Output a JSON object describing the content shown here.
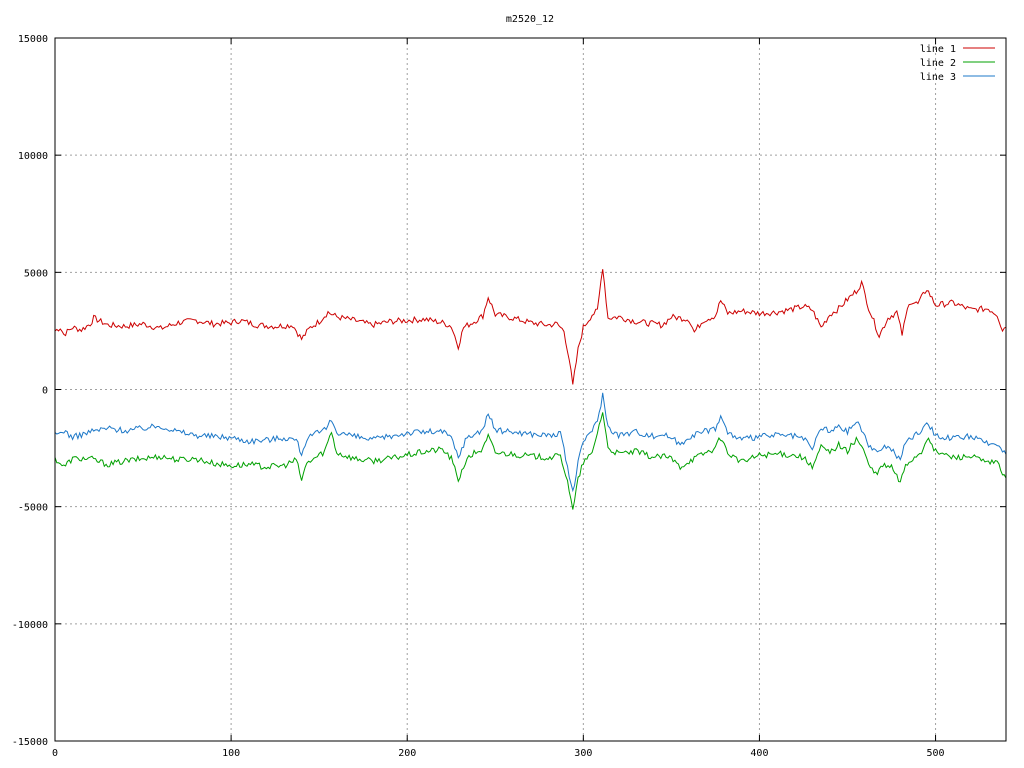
{
  "chart_data": {
    "type": "line",
    "title": "m2520_12",
    "xlabel": "",
    "ylabel": "",
    "xlim": [
      0,
      540
    ],
    "ylim": [
      -15000,
      15000
    ],
    "xticks": [
      0,
      100,
      200,
      300,
      400,
      500
    ],
    "yticks": [
      -15000,
      -10000,
      -5000,
      0,
      5000,
      10000,
      15000
    ],
    "grid": true,
    "legend_position": "top-right",
    "series": [
      {
        "name": "line 1",
        "color": "#cc0000",
        "keypoints": [
          [
            0,
            2500
          ],
          [
            3,
            2650
          ],
          [
            5,
            2350
          ],
          [
            10,
            2650
          ],
          [
            15,
            2550
          ],
          [
            20,
            2800
          ],
          [
            22,
            3050
          ],
          [
            30,
            2750
          ],
          [
            40,
            2700
          ],
          [
            50,
            2800
          ],
          [
            60,
            2600
          ],
          [
            70,
            2850
          ],
          [
            80,
            2950
          ],
          [
            90,
            2800
          ],
          [
            100,
            2850
          ],
          [
            105,
            2950
          ],
          [
            115,
            2750
          ],
          [
            125,
            2700
          ],
          [
            135,
            2750
          ],
          [
            140,
            2150
          ],
          [
            145,
            2650
          ],
          [
            150,
            2900
          ],
          [
            155,
            3300
          ],
          [
            160,
            3100
          ],
          [
            170,
            2950
          ],
          [
            180,
            2750
          ],
          [
            190,
            2900
          ],
          [
            200,
            2950
          ],
          [
            210,
            3000
          ],
          [
            220,
            2850
          ],
          [
            225,
            2700
          ],
          [
            229,
            1850
          ],
          [
            232,
            2650
          ],
          [
            238,
            2900
          ],
          [
            243,
            3150
          ],
          [
            246,
            3950
          ],
          [
            250,
            3200
          ],
          [
            260,
            3050
          ],
          [
            270,
            2850
          ],
          [
            280,
            2750
          ],
          [
            285,
            2800
          ],
          [
            289,
            2500
          ],
          [
            292,
            1300
          ],
          [
            294,
            150
          ],
          [
            297,
            1700
          ],
          [
            300,
            2650
          ],
          [
            305,
            3200
          ],
          [
            308,
            3350
          ],
          [
            311,
            5250
          ],
          [
            314,
            3050
          ],
          [
            320,
            3100
          ],
          [
            330,
            2900
          ],
          [
            340,
            2800
          ],
          [
            345,
            2750
          ],
          [
            350,
            3100
          ],
          [
            360,
            3000
          ],
          [
            363,
            2450
          ],
          [
            368,
            2950
          ],
          [
            375,
            3150
          ],
          [
            378,
            3800
          ],
          [
            382,
            3250
          ],
          [
            390,
            3350
          ],
          [
            400,
            3250
          ],
          [
            410,
            3300
          ],
          [
            420,
            3450
          ],
          [
            425,
            3550
          ],
          [
            430,
            3400
          ],
          [
            435,
            2650
          ],
          [
            440,
            3200
          ],
          [
            445,
            3450
          ],
          [
            450,
            3850
          ],
          [
            455,
            4200
          ],
          [
            458,
            4550
          ],
          [
            462,
            3500
          ],
          [
            468,
            2300
          ],
          [
            473,
            3050
          ],
          [
            478,
            3300
          ],
          [
            481,
            2350
          ],
          [
            485,
            3750
          ],
          [
            490,
            3650
          ],
          [
            495,
            4300
          ],
          [
            500,
            3600
          ],
          [
            510,
            3700
          ],
          [
            520,
            3400
          ],
          [
            530,
            3450
          ],
          [
            535,
            3200
          ],
          [
            538,
            2550
          ],
          [
            540,
            2700
          ]
        ]
      },
      {
        "name": "line 2",
        "color": "#00a000",
        "keypoints": [
          [
            0,
            -2950
          ],
          [
            3,
            -3150
          ],
          [
            5,
            -3300
          ],
          [
            10,
            -2950
          ],
          [
            20,
            -2950
          ],
          [
            30,
            -3200
          ],
          [
            40,
            -3050
          ],
          [
            50,
            -2950
          ],
          [
            60,
            -2850
          ],
          [
            70,
            -3000
          ],
          [
            80,
            -2950
          ],
          [
            90,
            -3150
          ],
          [
            100,
            -3250
          ],
          [
            110,
            -3200
          ],
          [
            120,
            -3300
          ],
          [
            130,
            -3250
          ],
          [
            137,
            -3000
          ],
          [
            140,
            -3850
          ],
          [
            143,
            -3150
          ],
          [
            148,
            -2900
          ],
          [
            153,
            -2650
          ],
          [
            157,
            -1800
          ],
          [
            160,
            -2700
          ],
          [
            170,
            -2950
          ],
          [
            180,
            -3050
          ],
          [
            190,
            -2950
          ],
          [
            200,
            -2800
          ],
          [
            210,
            -2650
          ],
          [
            220,
            -2550
          ],
          [
            225,
            -2950
          ],
          [
            229,
            -3850
          ],
          [
            233,
            -3100
          ],
          [
            238,
            -2700
          ],
          [
            243,
            -2550
          ],
          [
            246,
            -2000
          ],
          [
            250,
            -2700
          ],
          [
            260,
            -2750
          ],
          [
            270,
            -2850
          ],
          [
            280,
            -2900
          ],
          [
            287,
            -2850
          ],
          [
            291,
            -3850
          ],
          [
            294,
            -5200
          ],
          [
            297,
            -3850
          ],
          [
            300,
            -3100
          ],
          [
            305,
            -2750
          ],
          [
            308,
            -1800
          ],
          [
            311,
            -950
          ],
          [
            314,
            -2500
          ],
          [
            320,
            -2750
          ],
          [
            330,
            -2650
          ],
          [
            340,
            -2900
          ],
          [
            345,
            -2850
          ],
          [
            350,
            -2950
          ],
          [
            355,
            -3300
          ],
          [
            360,
            -3050
          ],
          [
            368,
            -2750
          ],
          [
            375,
            -2500
          ],
          [
            378,
            -2050
          ],
          [
            382,
            -2700
          ],
          [
            390,
            -3100
          ],
          [
            400,
            -2800
          ],
          [
            410,
            -2750
          ],
          [
            420,
            -2800
          ],
          [
            425,
            -2900
          ],
          [
            430,
            -3350
          ],
          [
            435,
            -2450
          ],
          [
            440,
            -2700
          ],
          [
            445,
            -2350
          ],
          [
            450,
            -2650
          ],
          [
            455,
            -2100
          ],
          [
            458,
            -2400
          ],
          [
            462,
            -3200
          ],
          [
            466,
            -3650
          ],
          [
            470,
            -3250
          ],
          [
            475,
            -3300
          ],
          [
            480,
            -4000
          ],
          [
            483,
            -3200
          ],
          [
            488,
            -2900
          ],
          [
            492,
            -2650
          ],
          [
            495,
            -2100
          ],
          [
            500,
            -2650
          ],
          [
            510,
            -2900
          ],
          [
            520,
            -2850
          ],
          [
            530,
            -3150
          ],
          [
            535,
            -3100
          ],
          [
            538,
            -3550
          ],
          [
            540,
            -3700
          ]
        ]
      },
      {
        "name": "line 3",
        "color": "#1d78c8",
        "keypoints": [
          [
            0,
            -1950
          ],
          [
            3,
            -1850
          ],
          [
            5,
            -1750
          ],
          [
            10,
            -2050
          ],
          [
            20,
            -1800
          ],
          [
            30,
            -1650
          ],
          [
            40,
            -1750
          ],
          [
            50,
            -1650
          ],
          [
            60,
            -1550
          ],
          [
            70,
            -1800
          ],
          [
            80,
            -1950
          ],
          [
            90,
            -2000
          ],
          [
            100,
            -2050
          ],
          [
            110,
            -2200
          ],
          [
            120,
            -2150
          ],
          [
            130,
            -2050
          ],
          [
            137,
            -2150
          ],
          [
            140,
            -2750
          ],
          [
            143,
            -2100
          ],
          [
            148,
            -1900
          ],
          [
            153,
            -1750
          ],
          [
            157,
            -1300
          ],
          [
            160,
            -1800
          ],
          [
            170,
            -2000
          ],
          [
            180,
            -2150
          ],
          [
            190,
            -2000
          ],
          [
            200,
            -1850
          ],
          [
            210,
            -1800
          ],
          [
            220,
            -1800
          ],
          [
            225,
            -2050
          ],
          [
            229,
            -2900
          ],
          [
            233,
            -2150
          ],
          [
            238,
            -1900
          ],
          [
            243,
            -1700
          ],
          [
            246,
            -1000
          ],
          [
            250,
            -1750
          ],
          [
            260,
            -1800
          ],
          [
            270,
            -1900
          ],
          [
            280,
            -1950
          ],
          [
            287,
            -1900
          ],
          [
            291,
            -3300
          ],
          [
            294,
            -4400
          ],
          [
            297,
            -3150
          ],
          [
            300,
            -2200
          ],
          [
            305,
            -1700
          ],
          [
            308,
            -1400
          ],
          [
            311,
            -200
          ],
          [
            314,
            -1600
          ],
          [
            320,
            -1950
          ],
          [
            330,
            -1800
          ],
          [
            340,
            -2000
          ],
          [
            345,
            -1900
          ],
          [
            350,
            -2050
          ],
          [
            355,
            -2350
          ],
          [
            360,
            -2000
          ],
          [
            368,
            -1800
          ],
          [
            375,
            -1650
          ],
          [
            378,
            -1150
          ],
          [
            382,
            -1850
          ],
          [
            390,
            -2150
          ],
          [
            400,
            -2000
          ],
          [
            410,
            -1950
          ],
          [
            420,
            -2000
          ],
          [
            425,
            -2100
          ],
          [
            430,
            -2550
          ],
          [
            435,
            -1600
          ],
          [
            440,
            -1800
          ],
          [
            445,
            -1600
          ],
          [
            450,
            -1800
          ],
          [
            455,
            -1350
          ],
          [
            458,
            -1700
          ],
          [
            462,
            -2350
          ],
          [
            466,
            -2700
          ],
          [
            470,
            -2400
          ],
          [
            475,
            -2550
          ],
          [
            480,
            -3000
          ],
          [
            483,
            -2250
          ],
          [
            488,
            -1950
          ],
          [
            492,
            -1750
          ],
          [
            495,
            -1350
          ],
          [
            500,
            -1950
          ],
          [
            510,
            -2100
          ],
          [
            520,
            -2000
          ],
          [
            530,
            -2350
          ],
          [
            535,
            -2300
          ],
          [
            538,
            -2550
          ],
          [
            540,
            -2650
          ]
        ]
      }
    ]
  }
}
